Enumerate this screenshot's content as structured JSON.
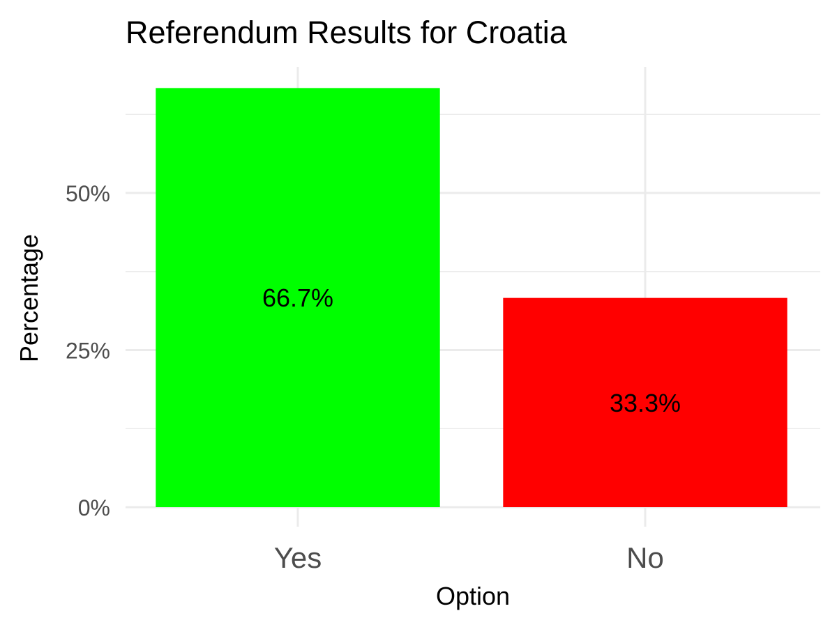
{
  "chart_data": {
    "type": "bar",
    "title": "Referendum Results for Croatia",
    "xlabel": "Option",
    "ylabel": "Percentage",
    "categories": [
      "Yes",
      "No"
    ],
    "values": [
      66.7,
      33.3
    ],
    "data_labels": [
      "66.7%",
      "33.3%"
    ],
    "colors": [
      "#00ff00",
      "#ff0000"
    ],
    "y_ticks": [
      0,
      25,
      50
    ],
    "y_tick_labels": [
      "0%",
      "25%",
      "50%"
    ],
    "ylim": [
      0,
      70
    ],
    "grid": true,
    "legend": "none"
  }
}
